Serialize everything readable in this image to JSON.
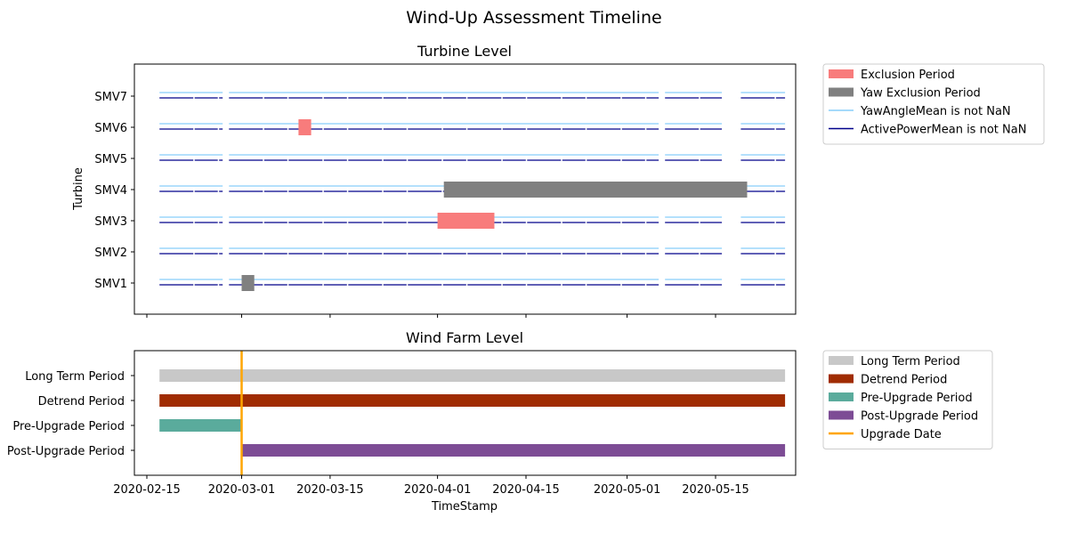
{
  "chart_data": {
    "type": "timeline",
    "title": "Wind-Up Assessment Timeline",
    "colors": {
      "exclusion": "#f87c7c",
      "yaw_exclusion": "#808080",
      "yaw_line": "#87cefa",
      "power_line": "#00008b",
      "long_term": "#c8c8c8",
      "detrend": "#a02c02",
      "pre_upgrade": "#5aab9c",
      "post_upgrade": "#7d4c95",
      "upgrade_date": "#ffa500"
    },
    "x_ticks": [
      "2020-02-15",
      "2020-03-01",
      "2020-03-15",
      "2020-04-01",
      "2020-04-15",
      "2020-05-01",
      "2020-05-15"
    ],
    "xlabel": "TimeStamp",
    "turbine_panel": {
      "title": "Turbine Level",
      "ylabel": "Turbine",
      "turbines": [
        "SMV7",
        "SMV6",
        "SMV5",
        "SMV4",
        "SMV3",
        "SMV2",
        "SMV1"
      ],
      "legend": [
        {
          "label": "Exclusion Period",
          "kind": "patch",
          "color": "#f87c7c"
        },
        {
          "label": "Yaw Exclusion Period",
          "kind": "patch",
          "color": "#808080"
        },
        {
          "label": "YawAngleMean is not NaN",
          "kind": "line",
          "color": "#87cefa"
        },
        {
          "label": "ActivePowerMean is not NaN",
          "kind": "line",
          "color": "#00008b"
        }
      ],
      "data_coverage": {
        "start": "2020-02-17",
        "end": "2020-05-26",
        "gaps": [
          [
            "2020-02-27",
            "2020-02-28"
          ],
          [
            "2020-05-06",
            "2020-05-07"
          ],
          [
            "2020-05-16",
            "2020-05-19"
          ]
        ]
      },
      "exclusion_periods": [
        {
          "turbine": "SMV6",
          "start": "2020-03-10",
          "end": "2020-03-12",
          "type": "exclusion"
        },
        {
          "turbine": "SMV3",
          "start": "2020-04-01",
          "end": "2020-04-10",
          "type": "exclusion"
        },
        {
          "turbine": "SMV4",
          "start": "2020-04-02",
          "end": "2020-05-20",
          "type": "yaw_exclusion"
        },
        {
          "turbine": "SMV1",
          "start": "2020-03-01",
          "end": "2020-03-03",
          "type": "yaw_exclusion"
        }
      ]
    },
    "farm_panel": {
      "title": "Wind Farm Level",
      "periods": [
        {
          "label": "Long Term Period",
          "start": "2020-02-17",
          "end": "2020-05-26",
          "color": "#c8c8c8"
        },
        {
          "label": "Detrend Period",
          "start": "2020-02-17",
          "end": "2020-05-26",
          "color": "#a02c02"
        },
        {
          "label": "Pre-Upgrade Period",
          "start": "2020-02-17",
          "end": "2020-03-01",
          "color": "#5aab9c"
        },
        {
          "label": "Post-Upgrade Period",
          "start": "2020-03-01",
          "end": "2020-05-26",
          "color": "#7d4c95"
        }
      ],
      "upgrade_date": "2020-03-01",
      "legend": [
        {
          "label": "Long Term Period",
          "kind": "patch",
          "color": "#c8c8c8"
        },
        {
          "label": "Detrend Period",
          "kind": "patch",
          "color": "#a02c02"
        },
        {
          "label": "Pre-Upgrade Period",
          "kind": "patch",
          "color": "#5aab9c"
        },
        {
          "label": "Post-Upgrade Period",
          "kind": "patch",
          "color": "#7d4c95"
        },
        {
          "label": "Upgrade Date",
          "kind": "line",
          "color": "#ffa500"
        }
      ]
    }
  }
}
